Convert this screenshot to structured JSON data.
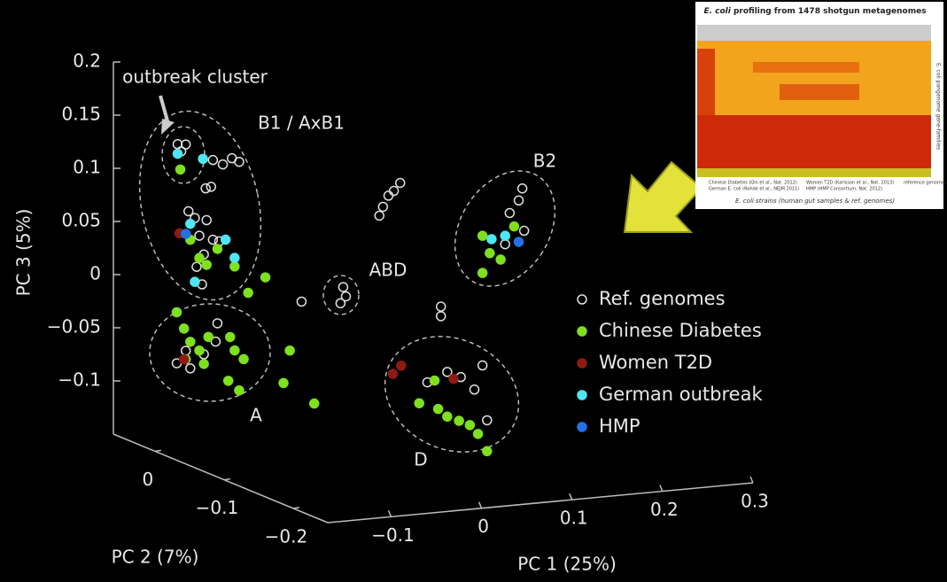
{
  "chart_data": {
    "type": "scatter3d",
    "xlabel": "PC 1 (25%)",
    "ylabel": "PC 2 (7%)",
    "zlabel": "PC 3 (5%)",
    "xlim": [
      -0.17,
      0.3
    ],
    "xticks": [
      {
        "value": -0.1,
        "label": "−0.1"
      },
      0,
      0.1,
      0.2,
      0.3
    ],
    "ylim": [
      -0.25,
      0.06
    ],
    "yticks": [
      {
        "value": -0.2,
        "label": "−0.2"
      },
      {
        "value": -0.1,
        "label": "−0.1"
      },
      0
    ],
    "zlim": [
      -0.15,
      0.2
    ],
    "zticks": [
      0.2,
      0.15,
      0.1,
      0.05,
      0,
      {
        "value": -0.05,
        "label": "−0.05"
      },
      {
        "value": -0.1,
        "label": "−0.1"
      }
    ],
    "annotations": [
      "outbreak cluster",
      "B1 / AxB1",
      "ABD",
      "B2",
      "A",
      "D"
    ],
    "series": [
      {
        "name": "Ref. genomes",
        "color": "#e0e0e0",
        "filled": false,
        "x": [
          -0.099,
          -0.09,
          -0.095,
          -0.06,
          -0.049,
          -0.039,
          -0.031,
          -0.068,
          -0.062,
          -0.087,
          -0.08,
          -0.067,
          -0.075,
          -0.06,
          -0.053,
          -0.07,
          -0.072,
          -0.078,
          -0.1,
          -0.09,
          -0.07,
          -0.057,
          -0.085,
          -0.055,
          0.038,
          0.084,
          0.087,
          0.081,
          0.128,
          0.134,
          0.14,
          0.147,
          0.124,
          0.282,
          0.278,
          0.268,
          0.284,
          0.263,
          0.192,
          0.192,
          0.199,
          0.214,
          0.229,
          0.238,
          0.243,
          0.177
        ],
        "z": [
          0.117,
          0.116,
          0.11,
          0.099,
          0.094,
          0.099,
          0.095,
          0.073,
          0.074,
          0.053,
          0.046,
          0.043,
          0.029,
          0.024,
          0.022,
          0.011,
          -0.017,
          0.0,
          -0.089,
          -0.078,
          -0.083,
          -0.072,
          -0.095,
          -0.055,
          -0.042,
          -0.032,
          -0.041,
          -0.047,
          0.04,
          0.05,
          0.054,
          0.061,
          0.032,
          0.045,
          0.034,
          0.023,
          0.005,
          -0.006,
          -0.059,
          -0.068,
          -0.121,
          -0.127,
          -0.14,
          -0.118,
          -0.17,
          -0.129
        ]
      },
      {
        "name": "Chinese Diabetes",
        "color": "#7ee01e",
        "filled": true,
        "x": [
          -0.096,
          -0.085,
          -0.075,
          -0.067,
          -0.055,
          -0.036,
          -0.002,
          -0.021,
          -0.1,
          -0.092,
          -0.085,
          -0.075,
          -0.065,
          -0.041,
          -0.026,
          -0.036,
          0.025,
          0.018,
          0.052,
          -0.043,
          -0.031,
          -0.09,
          -0.07,
          0.238,
          0.246,
          0.258,
          0.238,
          0.273,
          0.168,
          0.189,
          0.199,
          0.212,
          0.224,
          0.233,
          0.243,
          0.185
        ],
        "z": [
          0.093,
          0.026,
          0.008,
          0.001,
          0.015,
          -0.003,
          -0.016,
          -0.029,
          -0.041,
          -0.057,
          -0.07,
          -0.079,
          -0.067,
          -0.069,
          -0.091,
          -0.082,
          -0.087,
          -0.117,
          -0.139,
          -0.11,
          -0.12,
          -0.086,
          -0.092,
          0.004,
          -0.013,
          -0.02,
          -0.031,
          0.01,
          -0.148,
          -0.155,
          -0.163,
          -0.168,
          -0.173,
          -0.182,
          -0.199,
          -0.128
        ]
      },
      {
        "name": "Women T2D",
        "color": "#8e1a14",
        "filled": true,
        "x": [
          -0.097,
          -0.092,
          0.148,
          0.139,
          0.206
        ],
        "z": [
          0.033,
          -0.086,
          -0.111,
          -0.118,
          -0.128
        ]
      },
      {
        "name": "German outbreak",
        "color": "#4fe6f2",
        "filled": true,
        "x": [
          -0.099,
          -0.071,
          -0.046,
          -0.036,
          -0.08,
          -0.085,
          0.248,
          0.263
        ],
        "z": [
          0.108,
          0.101,
          0.023,
          0.005,
          -0.014,
          0.041,
          0.0,
          0.002
        ]
      },
      {
        "name": "HMP",
        "color": "#2272e6",
        "filled": true,
        "x": [
          -0.09,
          0.278
        ],
        "z": [
          0.032,
          -0.005
        ]
      }
    ]
  },
  "inset": {
    "title_italic": "E. coli",
    "title": "profiling from 1478 shotgun metagenomes",
    "xlabel": "E. coli strains (human gut samples & ref. genomes)",
    "ylabel": "E. coli pangenome gene-families",
    "legend": [
      "Chinese Diabetes (Qin et al., Nat. 2012)",
      "German E. coli (Rohde et al., NEJM 2011)",
      "Women T2D (Karlsson et al., Nat. 2013)",
      "HMP (HMP Consortium, Nat. 2012)",
      "reference genomes"
    ]
  }
}
